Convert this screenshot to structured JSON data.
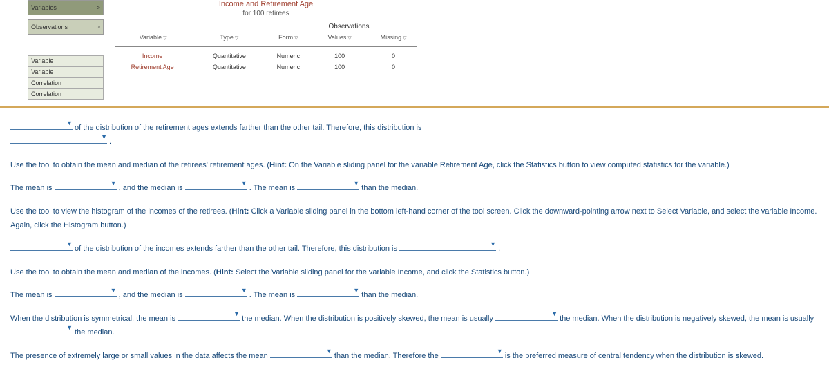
{
  "tool": {
    "title": "Income and Retirement Age",
    "subtitle": "for 100 retirees",
    "obs_header": "Observations",
    "left": {
      "variables_label": "Variables",
      "observations_label": "Observations",
      "chevron": ">"
    },
    "table": {
      "h1": "Variable",
      "h2": "Type",
      "h3": "Form",
      "h4": "Values",
      "h5": "Missing",
      "r1c1": "Income",
      "r1c2": "Quantitative",
      "r1c3": "Numeric",
      "r1c4": "100",
      "r1c5": "0",
      "r2c1": "Retirement Age",
      "r2c2": "Quantitative",
      "r2c3": "Numeric",
      "r2c4": "100",
      "r2c5": "0"
    },
    "bottom": {
      "b1": "Variable",
      "b2": "Variable",
      "b3": "Correlation",
      "b4": "Correlation"
    }
  },
  "txt": {
    "p1a": " of the distribution of the retirement ages extends farther than the other tail. Therefore, this distribution is ",
    "p1b": " .",
    "p2": "Use the tool to obtain the mean and median of the retirees' retirement ages. (",
    "p2hint": "Hint:",
    "p2b": " On the Variable sliding panel for the variable Retirement Age, click the Statistics button to view computed statistics for the variable.)",
    "p3a": "The mean is ",
    "p3b": " , and the median is ",
    "p3c": " . The mean is ",
    "p3d": " than the median.",
    "p4": "Use the tool to view the histogram of the incomes of the retirees. (",
    "p4b": " Click a Variable sliding panel in the bottom left-hand corner of the tool screen. Click the downward-pointing arrow next to Select Variable, and select the variable Income. Again, click the Histogram button.)",
    "p5a": " of the distribution of the incomes extends farther than the other tail. Therefore, this distribution is ",
    "p5b": " .",
    "p6": "Use the tool to obtain the mean and median of the incomes. (",
    "p6b": " Select the Variable sliding panel for the variable Income, and click the Statistics button.)",
    "p7a": "When the distribution is symmetrical, the mean is ",
    "p7b": " the median. When the distribution is positively skewed, the mean is usually ",
    "p7c": " the median. When the distribution is negatively skewed, the mean is usually ",
    "p7d": " the median.",
    "p8a": "The presence of extremely large or small values in the data affects the mean ",
    "p8b": " than the median. Therefore the ",
    "p8c": " is the preferred measure of central tendency when the distribution is skewed."
  }
}
